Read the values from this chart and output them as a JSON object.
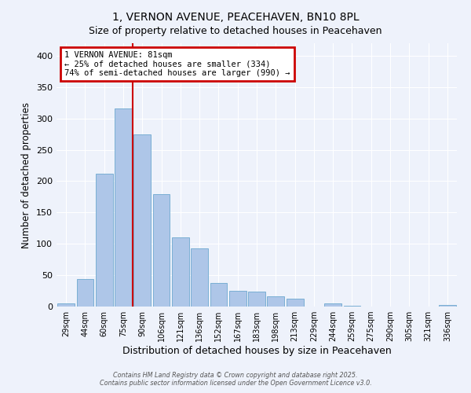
{
  "title_line1": "1, VERNON AVENUE, PEACEHAVEN, BN10 8PL",
  "title_line2": "Size of property relative to detached houses in Peacehaven",
  "xlabel": "Distribution of detached houses by size in Peacehaven",
  "ylabel": "Number of detached properties",
  "bar_labels": [
    "29sqm",
    "44sqm",
    "60sqm",
    "75sqm",
    "90sqm",
    "106sqm",
    "121sqm",
    "136sqm",
    "152sqm",
    "167sqm",
    "183sqm",
    "198sqm",
    "213sqm",
    "229sqm",
    "244sqm",
    "259sqm",
    "275sqm",
    "290sqm",
    "305sqm",
    "321sqm",
    "336sqm"
  ],
  "bar_values": [
    5,
    44,
    212,
    316,
    274,
    179,
    110,
    93,
    38,
    25,
    24,
    16,
    13,
    0,
    5,
    1,
    0,
    0,
    0,
    0,
    2
  ],
  "bar_color": "#aec6e8",
  "bar_edge_color": "#7aafd4",
  "vline_color": "#cc0000",
  "annotation_title": "1 VERNON AVENUE: 81sqm",
  "annotation_line2": "← 25% of detached houses are smaller (334)",
  "annotation_line3": "74% of semi-detached houses are larger (990) →",
  "annotation_box_color": "#ffffff",
  "annotation_box_edge": "#cc0000",
  "ylim": [
    0,
    420
  ],
  "yticks": [
    0,
    50,
    100,
    150,
    200,
    250,
    300,
    350,
    400
  ],
  "bg_color": "#eef2fb",
  "footer_line1": "Contains HM Land Registry data © Crown copyright and database right 2025.",
  "footer_line2": "Contains public sector information licensed under the Open Government Licence v3.0."
}
